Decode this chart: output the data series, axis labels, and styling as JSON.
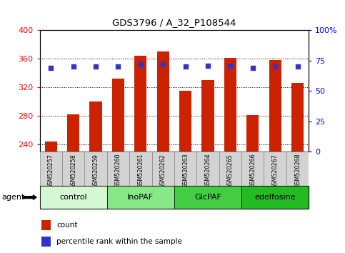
{
  "title": "GDS3796 / A_32_P108544",
  "samples": [
    "GSM520257",
    "GSM520258",
    "GSM520259",
    "GSM520260",
    "GSM520261",
    "GSM520262",
    "GSM520263",
    "GSM520264",
    "GSM520265",
    "GSM520266",
    "GSM520267",
    "GSM520268"
  ],
  "bar_values": [
    244,
    282,
    300,
    332,
    364,
    370,
    315,
    330,
    361,
    281,
    358,
    326
  ],
  "percentile_values": [
    69,
    70,
    70,
    70,
    72,
    72,
    70,
    71,
    71,
    69,
    70,
    70
  ],
  "bar_color": "#cc2200",
  "dot_color": "#3333cc",
  "ylim_left": [
    230,
    400
  ],
  "ylim_right": [
    0,
    100
  ],
  "yticks_left": [
    240,
    280,
    320,
    360,
    400
  ],
  "yticks_right": [
    0,
    25,
    50,
    75,
    100
  ],
  "ytick_labels_right": [
    "0",
    "25",
    "50",
    "75",
    "100%"
  ],
  "groups": [
    {
      "label": "control",
      "start": 0,
      "end": 3,
      "color": "#d4f7d4"
    },
    {
      "label": "InoPAF",
      "start": 3,
      "end": 6,
      "color": "#88e888"
    },
    {
      "label": "GlcPAF",
      "start": 6,
      "end": 9,
      "color": "#44cc44"
    },
    {
      "label": "edelfosine",
      "start": 9,
      "end": 12,
      "color": "#22bb22"
    }
  ],
  "legend_count_label": "count",
  "legend_pct_label": "percentile rank within the sample",
  "plot_bg": "#ffffff",
  "xtick_bg": "#d3d3d3",
  "bar_bottom": 230,
  "bar_width": 0.55
}
